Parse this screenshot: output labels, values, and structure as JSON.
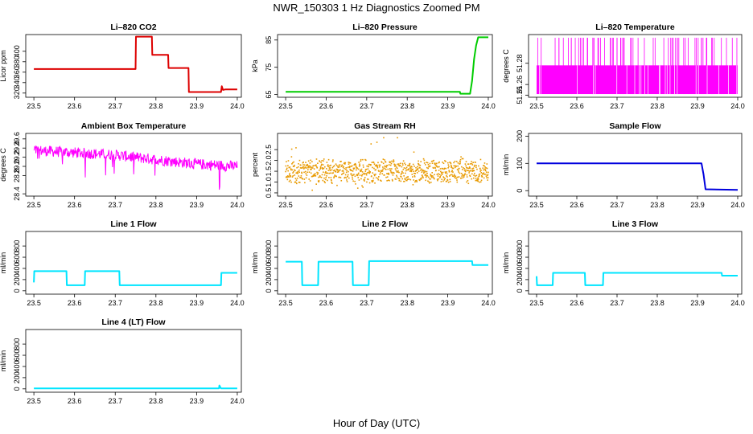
{
  "title": "NWR_150303  1 Hz Diagnostics Zoomed PM",
  "xlabel": "Hour of Day (UTC)",
  "chart_data": [
    {
      "type": "line",
      "title": "Li–820 CO2",
      "ylabel": "Licor ppm",
      "color": "#dd0000",
      "xlim": [
        23.48,
        24.01
      ],
      "ylim": [
        312,
        432
      ],
      "xticks": [
        "23.5",
        "23.6",
        "23.7",
        "23.8",
        "23.9",
        "24.0"
      ],
      "yticks": [
        "320",
        "340",
        "360",
        "380",
        "400"
      ],
      "series": [
        {
          "name": "CO2",
          "x": [
            23.5,
            23.62,
            23.75,
            23.751,
            23.79,
            23.791,
            23.83,
            23.831,
            23.88,
            23.881,
            23.96,
            23.962,
            23.965,
            23.97,
            24.0
          ],
          "values": [
            366,
            366,
            366,
            428,
            428,
            393,
            393,
            368,
            368,
            322,
            322,
            333,
            326,
            327,
            327
          ]
        }
      ]
    },
    {
      "type": "line",
      "title": "Li–820 Pressure",
      "ylabel": "kPa",
      "color": "#00cc00",
      "xlim": [
        23.48,
        24.01
      ],
      "ylim": [
        64,
        87
      ],
      "xticks": [
        "23.5",
        "23.6",
        "23.7",
        "23.8",
        "23.9",
        "24.0"
      ],
      "yticks": [
        "65",
        "75",
        "85"
      ],
      "series": [
        {
          "name": "Pressure",
          "x": [
            23.5,
            23.93,
            23.931,
            23.955,
            23.96,
            23.965,
            23.97,
            23.975,
            24.0
          ],
          "values": [
            66,
            66,
            65.3,
            65.3,
            70,
            78,
            83,
            86,
            86
          ]
        }
      ]
    },
    {
      "type": "line",
      "title": "Li–820 Temperature",
      "ylabel": "degrees C",
      "color": "#ff00ff",
      "xlim": [
        23.48,
        24.01
      ],
      "ylim": [
        51.248,
        51.307
      ],
      "xticks": [
        "23.5",
        "23.6",
        "23.7",
        "23.8",
        "23.9",
        "24.0"
      ],
      "yticks": [
        "51.25",
        "51.26",
        "51.28"
      ],
      "series": [
        {
          "name": "Temperature",
          "x": [
            23.5,
            24.0
          ],
          "values": [
            51.251,
            51.278
          ],
          "spike_max": 51.304
        }
      ]
    },
    {
      "type": "line",
      "title": "Ambient Box Temperature",
      "ylabel": "degrees C",
      "color": "#ff00ff",
      "xlim": [
        23.48,
        24.01
      ],
      "ylim": [
        28.35,
        29.72
      ],
      "xticks": [
        "23.5",
        "23.6",
        "23.7",
        "23.8",
        "23.9",
        "24.0"
      ],
      "yticks": [
        "28.4",
        "28.8",
        "29.0",
        "29.2",
        "29.4",
        "29.6"
      ],
      "series": [
        {
          "name": "Box Temp",
          "x": [
            23.5,
            23.6,
            23.7,
            23.8,
            23.9,
            24.0
          ],
          "values": [
            29.35,
            29.3,
            29.25,
            29.15,
            29.05,
            29.0
          ],
          "noise": 0.12
        }
      ]
    },
    {
      "type": "scatter",
      "title": "Gas Stream RH",
      "ylabel": "percent",
      "color": "#e89a00",
      "xlim": [
        23.48,
        24.01
      ],
      "ylim": [
        0.35,
        3.25
      ],
      "xticks": [
        "23.5",
        "23.6",
        "23.7",
        "23.8",
        "23.9",
        "24.0"
      ],
      "yticks": [
        "0.5",
        "1.0",
        "1.5",
        "2.0",
        "2.5"
      ],
      "series": [
        {
          "name": "RH",
          "x": [
            23.5,
            24.0
          ],
          "values": [
            1.5,
            1.5
          ],
          "noise": 0.45,
          "max": 3.05,
          "min": 0.5
        }
      ]
    },
    {
      "type": "line",
      "title": "Sample Flow",
      "ylabel": "ml/min",
      "color": "#0000dd",
      "xlim": [
        23.48,
        24.01
      ],
      "ylim": [
        -20,
        210
      ],
      "xticks": [
        "23.5",
        "23.6",
        "23.7",
        "23.8",
        "23.9",
        "24.0"
      ],
      "yticks": [
        "0",
        "100",
        "200"
      ],
      "series": [
        {
          "name": "Sample Flow",
          "x": [
            23.5,
            23.91,
            23.915,
            23.92,
            24.0
          ],
          "values": [
            100,
            100,
            60,
            5,
            3
          ]
        }
      ]
    },
    {
      "type": "line",
      "title": "Line 1 Flow",
      "ylabel": "ml/min",
      "color": "#00e5ff",
      "xlim": [
        23.48,
        24.01
      ],
      "ylim": [
        -60,
        1060
      ],
      "xticks": [
        "23.5",
        "23.6",
        "23.7",
        "23.8",
        "23.9",
        "24.0"
      ],
      "yticks": [
        "0",
        "200",
        "400",
        "600",
        "800"
      ],
      "series": [
        {
          "name": "Line 1",
          "x": [
            23.5,
            23.501,
            23.58,
            23.581,
            23.625,
            23.626,
            23.71,
            23.711,
            23.96,
            23.961,
            24.0
          ],
          "values": [
            150,
            350,
            350,
            100,
            100,
            350,
            350,
            100,
            100,
            320,
            320
          ]
        }
      ]
    },
    {
      "type": "line",
      "title": "Line 2 Flow",
      "ylabel": "ml/min",
      "color": "#00e5ff",
      "xlim": [
        23.48,
        24.01
      ],
      "ylim": [
        -60,
        1060
      ],
      "xticks": [
        "23.5",
        "23.6",
        "23.7",
        "23.8",
        "23.9",
        "24.0"
      ],
      "yticks": [
        "0",
        "200",
        "400",
        "600",
        "800"
      ],
      "series": [
        {
          "name": "Line 2",
          "x": [
            23.5,
            23.54,
            23.541,
            23.58,
            23.581,
            23.665,
            23.666,
            23.705,
            23.706,
            23.96,
            23.961,
            24.0
          ],
          "values": [
            520,
            520,
            100,
            100,
            520,
            520,
            100,
            100,
            530,
            530,
            460,
            460
          ]
        }
      ]
    },
    {
      "type": "line",
      "title": "Line 3 Flow",
      "ylabel": "ml/min",
      "color": "#00e5ff",
      "xlim": [
        23.48,
        24.01
      ],
      "ylim": [
        -60,
        1060
      ],
      "xticks": [
        "23.5",
        "23.6",
        "23.7",
        "23.8",
        "23.9",
        "24.0"
      ],
      "yticks": [
        "0",
        "200",
        "400",
        "600",
        "800"
      ],
      "series": [
        {
          "name": "Line 3",
          "x": [
            23.5,
            23.501,
            23.54,
            23.541,
            23.62,
            23.621,
            23.665,
            23.666,
            23.96,
            23.961,
            24.0
          ],
          "values": [
            260,
            100,
            100,
            320,
            320,
            100,
            100,
            320,
            320,
            270,
            270
          ]
        }
      ]
    },
    {
      "type": "line",
      "title": "Line 4 (LT) Flow",
      "ylabel": "ml/min",
      "color": "#00e5ff",
      "xlim": [
        23.48,
        24.01
      ],
      "ylim": [
        -60,
        1060
      ],
      "xticks": [
        "23.5",
        "23.6",
        "23.7",
        "23.8",
        "23.9",
        "24.0"
      ],
      "yticks": [
        "0",
        "200",
        "400",
        "600",
        "800"
      ],
      "series": [
        {
          "name": "Line 4",
          "x": [
            23.5,
            23.955,
            23.956,
            23.96,
            23.965,
            24.0
          ],
          "values": [
            8,
            8,
            60,
            8,
            8,
            8
          ]
        }
      ]
    }
  ]
}
